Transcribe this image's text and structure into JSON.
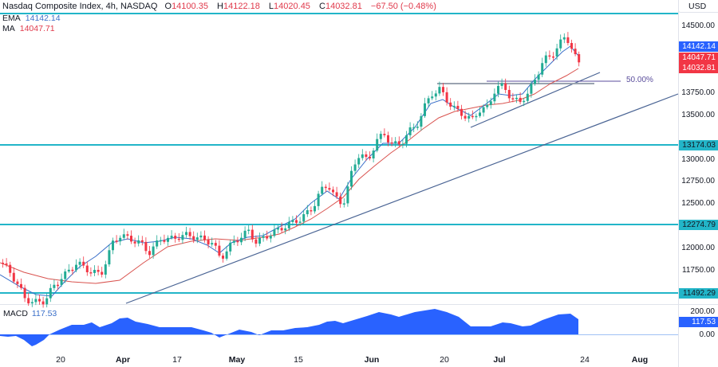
{
  "header": {
    "title": "Nasdaq Composite Index, 4h, NASDAQ",
    "open_label": "O",
    "open": "14100.35",
    "high_label": "H",
    "high": "14122.18",
    "low_label": "L",
    "low": "14020.45",
    "close_label": "C",
    "close": "14032.81",
    "change": "−67.50 (−0.48%)"
  },
  "indicators": {
    "ema": {
      "label": "EMA",
      "value": "14142.14",
      "color": "#3a6fc9"
    },
    "ma": {
      "label": "MA",
      "value": "14047.71",
      "color": "#e0394b"
    },
    "macd": {
      "label": "MACD",
      "value": "117.53",
      "color": "#2962ff"
    }
  },
  "price_axis": {
    "currency": "USD",
    "ticks": [
      "14500.00",
      "13750.00",
      "13500.00",
      "13000.00",
      "12750.00",
      "12500.00",
      "12000.00",
      "11750.00"
    ],
    "tags": [
      {
        "value": "14142.14",
        "bg": "#2962ff",
        "fg": "#ffffff"
      },
      {
        "value": "14047.71",
        "bg": "#f23645",
        "fg": "#ffffff"
      },
      {
        "value": "14032.81",
        "bg": "#f23645",
        "fg": "#ffffff"
      },
      {
        "value": "13174.03",
        "bg": "#22b5c8",
        "fg": "#131722"
      },
      {
        "value": "12274.79",
        "bg": "#22b5c8",
        "fg": "#131722"
      },
      {
        "value": "11492.29",
        "bg": "#22b5c8",
        "fg": "#131722"
      }
    ]
  },
  "macd_axis": {
    "ticks": [
      "200.00",
      "0.00"
    ],
    "tag": "117.53"
  },
  "time_axis": {
    "labels": [
      {
        "text": "20",
        "bold": false
      },
      {
        "text": "Apr",
        "bold": true
      },
      {
        "text": "17",
        "bold": false
      },
      {
        "text": "May",
        "bold": true
      },
      {
        "text": "15",
        "bold": false
      },
      {
        "text": "Jun",
        "bold": true
      },
      {
        "text": "20",
        "bold": false
      },
      {
        "text": "Jul",
        "bold": true
      },
      {
        "text": "24",
        "bold": false
      },
      {
        "text": "Aug",
        "bold": true
      }
    ]
  },
  "annotations": {
    "fib_label": "50.00%"
  },
  "chart_data": {
    "type": "candlestick",
    "title": "Nasdaq Composite Index, 4h, NASDAQ",
    "ylabel": "USD",
    "ylim": [
      11450,
      14620
    ],
    "x_tick_labels": [
      "20",
      "Apr",
      "17",
      "May",
      "15",
      "Jun",
      "20",
      "Jul",
      "24",
      "Aug"
    ],
    "last_ohlc": {
      "open": 14100.35,
      "high": 14122.18,
      "low": 14020.45,
      "close": 14032.81,
      "change": -67.5,
      "change_pct": -0.48
    },
    "horizontal_levels": [
      14620,
      13174.03,
      12274.79,
      11492.29
    ],
    "fib_level": {
      "label": "50.00%",
      "price": 13880
    },
    "ema_last": 14142.14,
    "ma_last": 14047.71,
    "approx_close_path": [
      {
        "date": "Mar 13",
        "close": 11700
      },
      {
        "date": "Mar 17",
        "close": 11450
      },
      {
        "date": "Mar 20",
        "close": 11600
      },
      {
        "date": "Mar 24",
        "close": 11900
      },
      {
        "date": "Mar 29",
        "close": 12050
      },
      {
        "date": "Apr 3",
        "close": 12080
      },
      {
        "date": "Apr 10",
        "close": 12000
      },
      {
        "date": "Apr 17",
        "close": 12150
      },
      {
        "date": "Apr 24",
        "close": 11950
      },
      {
        "date": "May 1",
        "close": 12150
      },
      {
        "date": "May 8",
        "close": 12230
      },
      {
        "date": "May 15",
        "close": 12300
      },
      {
        "date": "May 22",
        "close": 12650
      },
      {
        "date": "May 26",
        "close": 12900
      },
      {
        "date": "Jun 1",
        "close": 13100
      },
      {
        "date": "Jun 8",
        "close": 13250
      },
      {
        "date": "Jun 15",
        "close": 13700
      },
      {
        "date": "Jun 16",
        "close": 13850
      },
      {
        "date": "Jun 23",
        "close": 13500
      },
      {
        "date": "Jun 26",
        "close": 13400
      },
      {
        "date": "Jul 3",
        "close": 13800
      },
      {
        "date": "Jul 10",
        "close": 13700
      },
      {
        "date": "Jul 13",
        "close": 14150
      },
      {
        "date": "Jul 19",
        "close": 14400
      },
      {
        "date": "Jul 21",
        "close": 14032.81
      }
    ],
    "macd": {
      "ylim": [
        -60,
        230
      ],
      "last": 117.53,
      "ticks": [
        200,
        0
      ]
    }
  }
}
